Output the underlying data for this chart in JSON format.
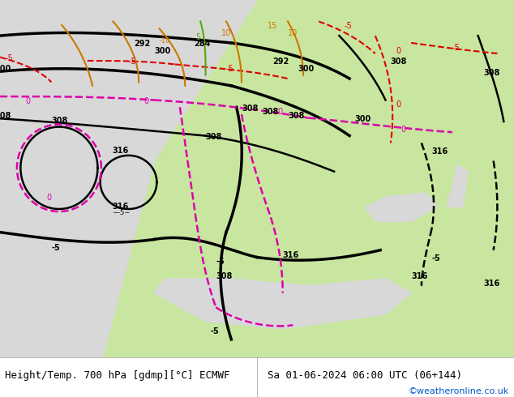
{
  "title_left": "Height/Temp. 700 hPa [gdmp][°C] ECMWF",
  "title_right": "Sa 01-06-2024 06:00 UTC (06+144)",
  "credit": "©weatheronline.co.uk",
  "bg_land": "#c8e6a0",
  "bg_sea": "#d8d8d8",
  "fig_width": 6.34,
  "fig_height": 4.9,
  "dpi": 100,
  "title_fontsize": 9,
  "credit_color": "#0055cc",
  "credit_fontsize": 8
}
